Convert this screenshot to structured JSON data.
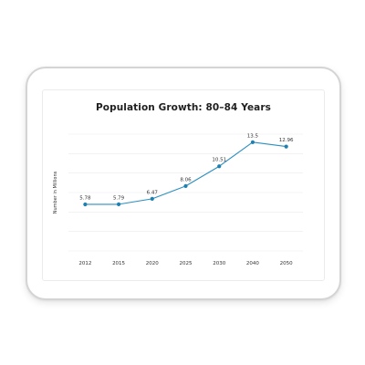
{
  "chart_data": {
    "type": "line",
    "title": "Population Growth: 80–84 Years",
    "xlabel": "",
    "ylabel": "Number in Millions",
    "categories": [
      "2012",
      "2015",
      "2020",
      "2025",
      "2030",
      "2040",
      "2050"
    ],
    "series": [
      {
        "values": [
          5.78,
          5.79,
          6.47,
          8.06,
          10.51,
          13.5,
          12.96
        ],
        "data_labels": [
          "5.78",
          "5.79",
          "6.47",
          "8.06",
          "10.51",
          "13.5",
          "12.96"
        ]
      }
    ],
    "ylim": [
      0,
      14.5
    ],
    "grid": true,
    "y_tick_labels_visible": false,
    "colors": {
      "line": "#2b8fbf",
      "marker": "#1f7fae",
      "grid": "#e9e9e9"
    }
  }
}
